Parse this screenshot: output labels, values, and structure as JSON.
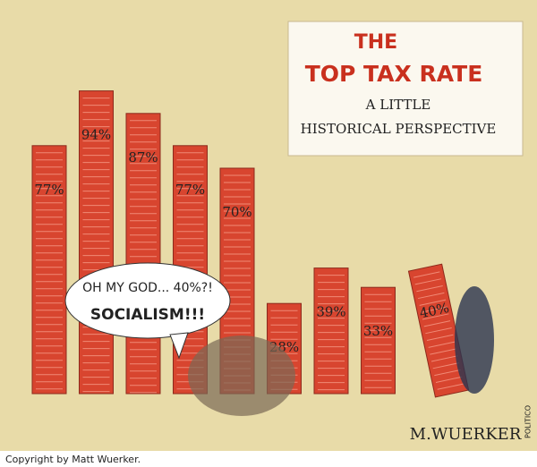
{
  "chart_data": {
    "type": "bar",
    "title_lines": [
      "THE",
      "TOP TAX RATE"
    ],
    "subtitle_lines": [
      "A LITTLE",
      "HISTORICAL PERSPECTIVE"
    ],
    "values": [
      77,
      94,
      87,
      77,
      70,
      28,
      39,
      33,
      40
    ],
    "value_labels": [
      "77%",
      "94%",
      "87%",
      "77%",
      "70%",
      "28%",
      "39%",
      "33%",
      "40%"
    ],
    "color": "#d8452f",
    "speech_lines": [
      "OH MY GOD... 40%?!",
      "SOCIALISM!!!"
    ],
    "signature": "M.WUERKER",
    "publisher": "POLITICO",
    "copyright": "Copyright by Matt Wuerker."
  }
}
